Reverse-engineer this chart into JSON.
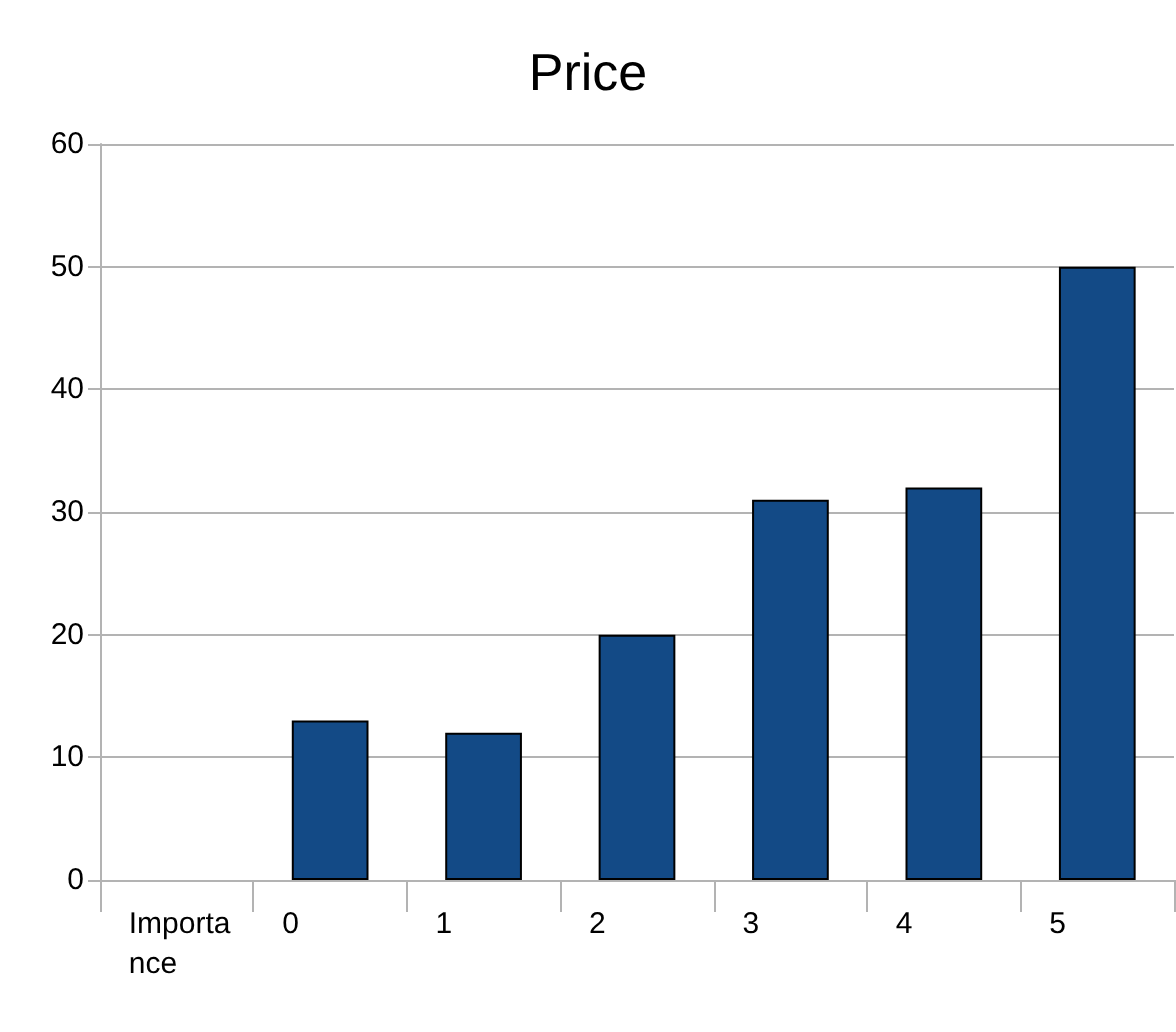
{
  "chart_data": {
    "type": "bar",
    "title": "Price",
    "categories": [
      "Importance",
      "0",
      "1",
      "2",
      "3",
      "4",
      "5"
    ],
    "values": [
      null,
      13,
      12,
      20,
      31,
      32,
      50
    ],
    "color": "#134a86",
    "ylim": [
      0,
      60
    ],
    "yticks": [
      0,
      10,
      20,
      30,
      40,
      50,
      60
    ],
    "grid": "y"
  }
}
